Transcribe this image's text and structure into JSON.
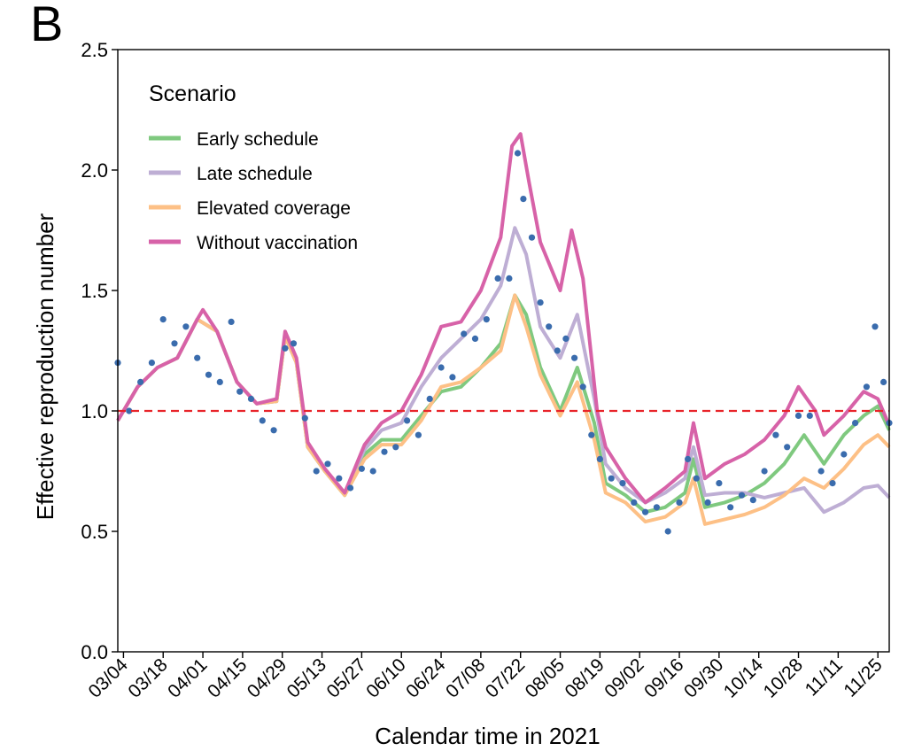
{
  "panel_label": "B",
  "chart_data": {
    "type": "line",
    "xlabel": "Calendar time in 2021",
    "ylabel": "Effective reproduction number",
    "ylim": [
      0,
      2.5
    ],
    "yticks": [
      "0.0",
      "0.5",
      "1.0",
      "1.5",
      "2.0",
      "2.5"
    ],
    "x_start": "03/02",
    "x_end": "11/29",
    "xtick_labels": [
      "03/04",
      "03/18",
      "04/01",
      "04/15",
      "04/29",
      "05/13",
      "05/27",
      "06/10",
      "06/24",
      "07/08",
      "07/22",
      "08/05",
      "08/19",
      "09/02",
      "09/16",
      "09/30",
      "10/14",
      "10/28",
      "11/11",
      "11/25"
    ],
    "reference_line": {
      "y": 1.0,
      "style": "dashed",
      "color": "#e8242a"
    },
    "legend": {
      "title": "Scenario",
      "position": "top-left"
    },
    "series": [
      {
        "name": "Early schedule",
        "color": "#7fc97f",
        "points": [
          [
            "03/02",
            0.96
          ],
          [
            "03/09",
            1.1
          ],
          [
            "03/16",
            1.18
          ],
          [
            "03/23",
            1.22
          ],
          [
            "03/30",
            1.38
          ],
          [
            "04/06",
            1.33
          ],
          [
            "04/13",
            1.12
          ],
          [
            "04/20",
            1.03
          ],
          [
            "04/27",
            1.04
          ],
          [
            "04/30",
            1.31
          ],
          [
            "05/04",
            1.2
          ],
          [
            "05/08",
            0.85
          ],
          [
            "05/14",
            0.75
          ],
          [
            "05/21",
            0.65
          ],
          [
            "05/28",
            0.82
          ],
          [
            "06/03",
            0.88
          ],
          [
            "06/10",
            0.88
          ],
          [
            "06/17",
            0.98
          ],
          [
            "06/24",
            1.08
          ],
          [
            "07/01",
            1.1
          ],
          [
            "07/08",
            1.18
          ],
          [
            "07/15",
            1.28
          ],
          [
            "07/20",
            1.48
          ],
          [
            "07/24",
            1.4
          ],
          [
            "07/29",
            1.18
          ],
          [
            "08/05",
            1.0
          ],
          [
            "08/11",
            1.18
          ],
          [
            "08/17",
            0.95
          ],
          [
            "08/21",
            0.7
          ],
          [
            "08/28",
            0.65
          ],
          [
            "09/04",
            0.58
          ],
          [
            "09/11",
            0.6
          ],
          [
            "09/18",
            0.66
          ],
          [
            "09/21",
            0.8
          ],
          [
            "09/25",
            0.6
          ],
          [
            "10/02",
            0.62
          ],
          [
            "10/09",
            0.65
          ],
          [
            "10/16",
            0.7
          ],
          [
            "10/23",
            0.78
          ],
          [
            "10/30",
            0.9
          ],
          [
            "11/06",
            0.78
          ],
          [
            "11/13",
            0.9
          ],
          [
            "11/20",
            0.98
          ],
          [
            "11/25",
            1.02
          ],
          [
            "11/29",
            0.92
          ]
        ]
      },
      {
        "name": "Late schedule",
        "color": "#beaed4",
        "points": [
          [
            "03/02",
            0.96
          ],
          [
            "03/09",
            1.1
          ],
          [
            "03/16",
            1.18
          ],
          [
            "03/23",
            1.22
          ],
          [
            "03/30",
            1.38
          ],
          [
            "04/06",
            1.33
          ],
          [
            "04/13",
            1.12
          ],
          [
            "04/20",
            1.03
          ],
          [
            "04/27",
            1.04
          ],
          [
            "04/30",
            1.31
          ],
          [
            "05/04",
            1.2
          ],
          [
            "05/08",
            0.85
          ],
          [
            "05/14",
            0.75
          ],
          [
            "05/21",
            0.66
          ],
          [
            "05/28",
            0.84
          ],
          [
            "06/03",
            0.92
          ],
          [
            "06/10",
            0.95
          ],
          [
            "06/17",
            1.1
          ],
          [
            "06/24",
            1.22
          ],
          [
            "07/01",
            1.3
          ],
          [
            "07/08",
            1.38
          ],
          [
            "07/15",
            1.52
          ],
          [
            "07/20",
            1.76
          ],
          [
            "07/24",
            1.65
          ],
          [
            "07/29",
            1.35
          ],
          [
            "08/05",
            1.22
          ],
          [
            "08/11",
            1.4
          ],
          [
            "08/17",
            1.05
          ],
          [
            "08/21",
            0.78
          ],
          [
            "08/28",
            0.68
          ],
          [
            "09/04",
            0.62
          ],
          [
            "09/11",
            0.66
          ],
          [
            "09/18",
            0.72
          ],
          [
            "09/21",
            0.85
          ],
          [
            "09/25",
            0.65
          ],
          [
            "10/02",
            0.66
          ],
          [
            "10/09",
            0.66
          ],
          [
            "10/16",
            0.64
          ],
          [
            "10/23",
            0.66
          ],
          [
            "10/30",
            0.68
          ],
          [
            "11/06",
            0.58
          ],
          [
            "11/13",
            0.62
          ],
          [
            "11/20",
            0.68
          ],
          [
            "11/25",
            0.69
          ],
          [
            "11/29",
            0.64
          ]
        ]
      },
      {
        "name": "Elevated coverage",
        "color": "#fdc086",
        "points": [
          [
            "03/02",
            0.96
          ],
          [
            "03/09",
            1.1
          ],
          [
            "03/16",
            1.18
          ],
          [
            "03/23",
            1.22
          ],
          [
            "03/30",
            1.38
          ],
          [
            "04/06",
            1.33
          ],
          [
            "04/13",
            1.12
          ],
          [
            "04/20",
            1.03
          ],
          [
            "04/27",
            1.04
          ],
          [
            "04/30",
            1.31
          ],
          [
            "05/04",
            1.2
          ],
          [
            "05/08",
            0.85
          ],
          [
            "05/14",
            0.75
          ],
          [
            "05/21",
            0.65
          ],
          [
            "05/28",
            0.8
          ],
          [
            "06/03",
            0.86
          ],
          [
            "06/10",
            0.86
          ],
          [
            "06/17",
            0.96
          ],
          [
            "06/24",
            1.1
          ],
          [
            "07/01",
            1.12
          ],
          [
            "07/08",
            1.18
          ],
          [
            "07/15",
            1.25
          ],
          [
            "07/20",
            1.48
          ],
          [
            "07/24",
            1.35
          ],
          [
            "07/29",
            1.15
          ],
          [
            "08/05",
            0.98
          ],
          [
            "08/11",
            1.12
          ],
          [
            "08/17",
            0.88
          ],
          [
            "08/21",
            0.66
          ],
          [
            "08/28",
            0.62
          ],
          [
            "09/04",
            0.54
          ],
          [
            "09/11",
            0.56
          ],
          [
            "09/18",
            0.62
          ],
          [
            "09/21",
            0.72
          ],
          [
            "09/25",
            0.53
          ],
          [
            "10/02",
            0.55
          ],
          [
            "10/09",
            0.57
          ],
          [
            "10/16",
            0.6
          ],
          [
            "10/23",
            0.65
          ],
          [
            "10/30",
            0.72
          ],
          [
            "11/06",
            0.68
          ],
          [
            "11/13",
            0.76
          ],
          [
            "11/20",
            0.86
          ],
          [
            "11/25",
            0.9
          ],
          [
            "11/29",
            0.85
          ]
        ]
      },
      {
        "name": "Without vaccination",
        "color": "#d762a8",
        "points": [
          [
            "03/02",
            0.96
          ],
          [
            "03/09",
            1.1
          ],
          [
            "03/16",
            1.18
          ],
          [
            "03/23",
            1.22
          ],
          [
            "03/30",
            1.38
          ],
          [
            "04/01",
            1.42
          ],
          [
            "04/06",
            1.33
          ],
          [
            "04/13",
            1.12
          ],
          [
            "04/20",
            1.03
          ],
          [
            "04/27",
            1.05
          ],
          [
            "04/30",
            1.33
          ],
          [
            "05/04",
            1.22
          ],
          [
            "05/08",
            0.87
          ],
          [
            "05/14",
            0.76
          ],
          [
            "05/21",
            0.66
          ],
          [
            "05/28",
            0.86
          ],
          [
            "06/03",
            0.95
          ],
          [
            "06/10",
            1.0
          ],
          [
            "06/17",
            1.15
          ],
          [
            "06/24",
            1.35
          ],
          [
            "07/01",
            1.37
          ],
          [
            "07/08",
            1.5
          ],
          [
            "07/15",
            1.72
          ],
          [
            "07/19",
            2.1
          ],
          [
            "07/22",
            2.15
          ],
          [
            "07/25",
            1.95
          ],
          [
            "07/29",
            1.7
          ],
          [
            "08/05",
            1.5
          ],
          [
            "08/09",
            1.75
          ],
          [
            "08/13",
            1.55
          ],
          [
            "08/18",
            1.0
          ],
          [
            "08/21",
            0.85
          ],
          [
            "08/28",
            0.72
          ],
          [
            "09/04",
            0.62
          ],
          [
            "09/11",
            0.68
          ],
          [
            "09/18",
            0.75
          ],
          [
            "09/21",
            0.95
          ],
          [
            "09/25",
            0.72
          ],
          [
            "10/02",
            0.78
          ],
          [
            "10/09",
            0.82
          ],
          [
            "10/16",
            0.88
          ],
          [
            "10/23",
            0.98
          ],
          [
            "10/28",
            1.1
          ],
          [
            "11/03",
            1.0
          ],
          [
            "11/06",
            0.9
          ],
          [
            "11/13",
            0.98
          ],
          [
            "11/20",
            1.08
          ],
          [
            "11/25",
            1.05
          ],
          [
            "11/29",
            0.94
          ]
        ]
      }
    ],
    "observed_points": {
      "color": "#3a6cad",
      "points": [
        [
          "03/02",
          1.2
        ],
        [
          "03/06",
          1.0
        ],
        [
          "03/10",
          1.12
        ],
        [
          "03/14",
          1.2
        ],
        [
          "03/18",
          1.38
        ],
        [
          "03/22",
          1.28
        ],
        [
          "03/26",
          1.35
        ],
        [
          "03/30",
          1.22
        ],
        [
          "04/03",
          1.15
        ],
        [
          "04/07",
          1.12
        ],
        [
          "04/11",
          1.37
        ],
        [
          "04/14",
          1.08
        ],
        [
          "04/18",
          1.05
        ],
        [
          "04/22",
          0.96
        ],
        [
          "04/26",
          0.92
        ],
        [
          "04/30",
          1.26
        ],
        [
          "05/03",
          1.28
        ],
        [
          "05/07",
          0.97
        ],
        [
          "05/11",
          0.75
        ],
        [
          "05/15",
          0.78
        ],
        [
          "05/19",
          0.72
        ],
        [
          "05/23",
          0.68
        ],
        [
          "05/27",
          0.76
        ],
        [
          "05/31",
          0.75
        ],
        [
          "06/04",
          0.83
        ],
        [
          "06/08",
          0.85
        ],
        [
          "06/12",
          0.96
        ],
        [
          "06/16",
          0.9
        ],
        [
          "06/20",
          1.05
        ],
        [
          "06/24",
          1.18
        ],
        [
          "06/28",
          1.14
        ],
        [
          "07/02",
          1.32
        ],
        [
          "07/06",
          1.3
        ],
        [
          "07/10",
          1.38
        ],
        [
          "07/14",
          1.55
        ],
        [
          "07/18",
          1.55
        ],
        [
          "07/21",
          2.07
        ],
        [
          "07/23",
          1.88
        ],
        [
          "07/26",
          1.72
        ],
        [
          "07/29",
          1.45
        ],
        [
          "08/01",
          1.35
        ],
        [
          "08/04",
          1.25
        ],
        [
          "08/07",
          1.3
        ],
        [
          "08/10",
          1.22
        ],
        [
          "08/13",
          1.1
        ],
        [
          "08/16",
          0.9
        ],
        [
          "08/19",
          0.8
        ],
        [
          "08/23",
          0.72
        ],
        [
          "08/27",
          0.7
        ],
        [
          "08/31",
          0.62
        ],
        [
          "09/04",
          0.58
        ],
        [
          "09/08",
          0.6
        ],
        [
          "09/12",
          0.5
        ],
        [
          "09/16",
          0.62
        ],
        [
          "09/19",
          0.8
        ],
        [
          "09/22",
          0.72
        ],
        [
          "09/26",
          0.62
        ],
        [
          "09/30",
          0.7
        ],
        [
          "10/04",
          0.6
        ],
        [
          "10/08",
          0.65
        ],
        [
          "10/12",
          0.63
        ],
        [
          "10/16",
          0.75
        ],
        [
          "10/20",
          0.9
        ],
        [
          "10/24",
          0.85
        ],
        [
          "10/28",
          0.98
        ],
        [
          "11/01",
          0.98
        ],
        [
          "11/05",
          0.75
        ],
        [
          "11/09",
          0.7
        ],
        [
          "11/13",
          0.82
        ],
        [
          "11/17",
          0.95
        ],
        [
          "11/21",
          1.1
        ],
        [
          "11/24",
          1.35
        ],
        [
          "11/27",
          1.12
        ],
        [
          "11/29",
          0.95
        ]
      ]
    }
  }
}
